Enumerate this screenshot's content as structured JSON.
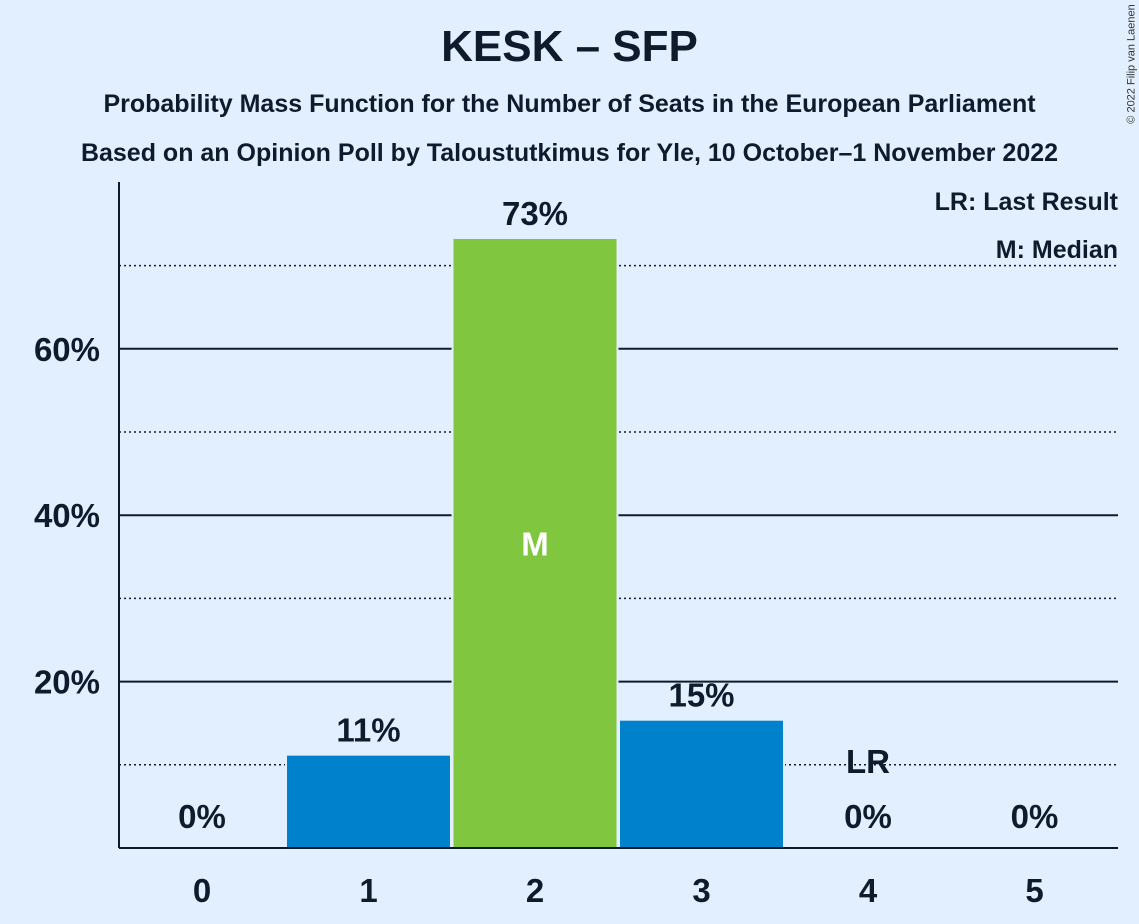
{
  "title": "KESK – SFP",
  "subtitle1": "Probability Mass Function for the Number of Seats in the European Parliament",
  "subtitle2": "Based on an Opinion Poll by Taloustutkimus for Yle, 10 October–1 November 2022",
  "copyright": "© 2022 Filip van Laenen",
  "legend": {
    "lr": "LR: Last Result",
    "median": "M: Median"
  },
  "colors": {
    "background": "#e2efff",
    "bar": "#0081cc",
    "median_bar": "#80c63f",
    "text": "#0f1b2d"
  },
  "chart_data": {
    "type": "bar",
    "categories": [
      "0",
      "1",
      "2",
      "3",
      "4",
      "5"
    ],
    "values": [
      0,
      11.1,
      73.2,
      15.3,
      0,
      0
    ],
    "value_labels": [
      "0%",
      "11%",
      "73%",
      "15%",
      "0%",
      "0%"
    ],
    "median_index": 2,
    "median_label": "M",
    "last_result_index": 4,
    "last_result_label": "LR",
    "last_result_line_value": 10,
    "ylim": [
      0,
      80
    ],
    "y_major_ticks": [
      20,
      40,
      60
    ],
    "y_tick_labels": [
      "20%",
      "40%",
      "60%"
    ],
    "y_minor_ticks": [
      10,
      30,
      50,
      70
    ],
    "xlabel": "",
    "ylabel": ""
  }
}
